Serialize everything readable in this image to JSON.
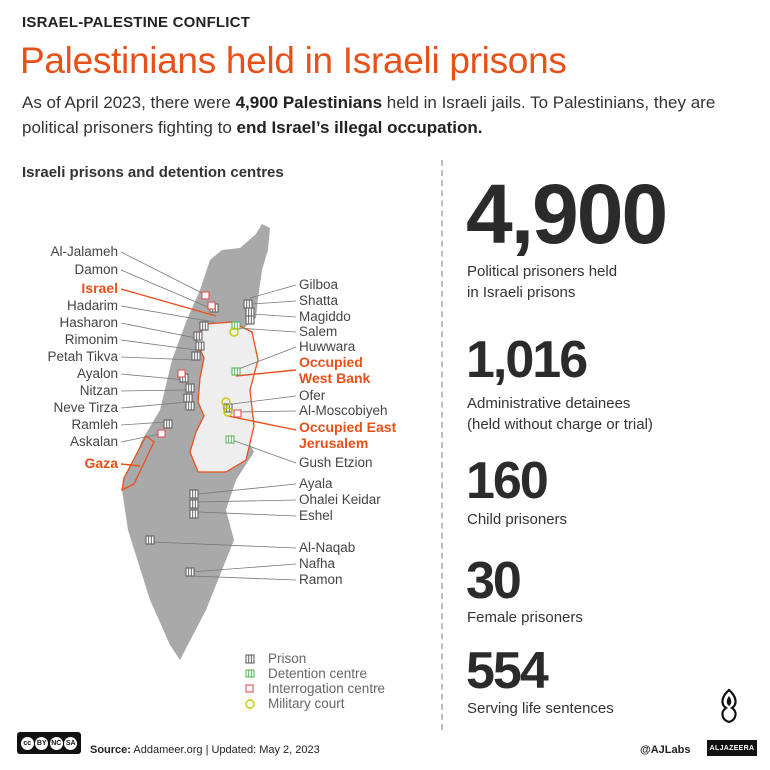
{
  "header": {
    "kicker": "ISRAEL-PALESTINE CONFLICT",
    "title": "Palestinians held in Israeli prisons",
    "intro_1": "As of April 2023, there were ",
    "intro_b1": "4,900 Palestinians",
    "intro_2": " held in Israeli jails. To Palestinians, they are political prisoners fighting to ",
    "intro_b2": "end Israel’s illegal occupation."
  },
  "map": {
    "title": "Israeli prisons and detention centres",
    "left_labels": [
      {
        "text": "Al-Jalameh",
        "kind": "site"
      },
      {
        "text": "Damon",
        "kind": "site"
      },
      {
        "text": "Israel",
        "kind": "region"
      },
      {
        "text": "Hadarim",
        "kind": "site"
      },
      {
        "text": "Hasharon",
        "kind": "site"
      },
      {
        "text": "Rimonim",
        "kind": "site"
      },
      {
        "text": "Petah Tikva",
        "kind": "site"
      },
      {
        "text": "Ayalon",
        "kind": "site"
      },
      {
        "text": "Nitzan",
        "kind": "site"
      },
      {
        "text": "Neve Tirza",
        "kind": "site"
      },
      {
        "text": "Ramleh",
        "kind": "site"
      },
      {
        "text": "Askalan",
        "kind": "site"
      },
      {
        "text": "Gaza",
        "kind": "region"
      }
    ],
    "right_labels": [
      {
        "text": "Gilboa",
        "kind": "site"
      },
      {
        "text": "Shatta",
        "kind": "site"
      },
      {
        "text": "Magiddo",
        "kind": "site"
      },
      {
        "text": "Salem",
        "kind": "site"
      },
      {
        "text": "Huwwara",
        "kind": "site"
      },
      {
        "text": "Occupied",
        "kind": "region"
      },
      {
        "text": "West Bank",
        "kind": "region"
      },
      {
        "text": "Ofer",
        "kind": "site"
      },
      {
        "text": "Al-Moscobiyeh",
        "kind": "site"
      },
      {
        "text": "Occupied East",
        "kind": "region"
      },
      {
        "text": "Jerusalem",
        "kind": "region"
      },
      {
        "text": "Gush Etzion",
        "kind": "site"
      },
      {
        "text": "Ayala",
        "kind": "site"
      },
      {
        "text": "Ohalei Keidar",
        "kind": "site"
      },
      {
        "text": "Eshel",
        "kind": "site"
      },
      {
        "text": "Al-Naqab",
        "kind": "site"
      },
      {
        "text": "Nafha",
        "kind": "site"
      },
      {
        "text": "Ramon",
        "kind": "site"
      }
    ],
    "legend": [
      {
        "label": "Prison",
        "type": "prison",
        "color": "#555555"
      },
      {
        "label": "Detention centre",
        "type": "detention",
        "color": "#4caf50"
      },
      {
        "label": "Interrogation centre",
        "type": "interrogation",
        "color": "#e05050"
      },
      {
        "label": "Military court",
        "type": "court",
        "color": "#c8c800"
      }
    ],
    "colors": {
      "land": "#a9a9a9",
      "west_bank": "#eeeeee",
      "accent": "#e8501a"
    }
  },
  "stats": [
    {
      "value": "4,900",
      "label_1": "Political prisoners held",
      "label_2": "in Israeli prisons"
    },
    {
      "value": "1,016",
      "label_1": "Administrative detainees",
      "label_2": "(held without charge or trial)"
    },
    {
      "value": "160",
      "label_1": "Child prisoners",
      "label_2": ""
    },
    {
      "value": "30",
      "label_1": "Female prisoners",
      "label_2": ""
    },
    {
      "value": "554",
      "label_1": "Serving life sentences",
      "label_2": ""
    }
  ],
  "footer": {
    "cc": [
      "cc",
      "BY",
      "NC",
      "SA"
    ],
    "source_label": "Source:",
    "source": " Addameer.org  |  Updated: May 2, 2023",
    "handle": "@AJLabs",
    "brand": "ALJAZEERA"
  }
}
